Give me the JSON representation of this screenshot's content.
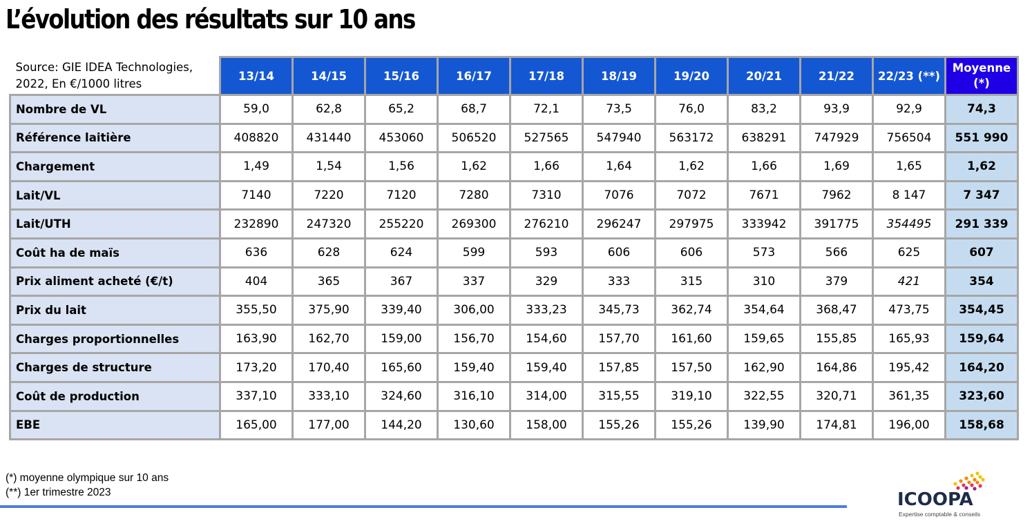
{
  "title": "L’évolution des résultats sur 10 ans",
  "source_line1": "Source: GIE IDEA Technologies,",
  "source_line2": "2022, En €/1000 litres",
  "years": [
    "13/14",
    "14/15",
    "15/16",
    "16/17",
    "17/18",
    "18/19",
    "19/20",
    "20/21",
    "21/22",
    "22/23 (**)"
  ],
  "avg_header_line1": "Moyenne",
  "avg_header_line2": "(*)",
  "rows": [
    {
      "label": "Nombre de VL",
      "values": [
        "59,0",
        "62,8",
        "65,2",
        "68,7",
        "72,1",
        "73,5",
        "76,0",
        "83,2",
        "93,9",
        "92,9"
      ],
      "avg": "74,3"
    },
    {
      "label": "Référence laitière",
      "values": [
        "408820",
        "431440",
        "453060",
        "506520",
        "527565",
        "547940",
        "563172",
        "638291",
        "747929",
        "756504"
      ],
      "avg": "551 990"
    },
    {
      "label": "Chargement",
      "values": [
        "1,49",
        "1,54",
        "1,56",
        "1,62",
        "1,66",
        "1,64",
        "1,62",
        "1,66",
        "1,69",
        "1,65"
      ],
      "avg": "1,62"
    },
    {
      "label": "Lait/VL",
      "values": [
        "7140",
        "7220",
        "7120",
        "7280",
        "7310",
        "7076",
        "7072",
        "7671",
        "7962",
        "8 147"
      ],
      "avg": "7 347"
    },
    {
      "label": "Lait/UTH",
      "values": [
        "232890",
        "247320",
        "255220",
        "269300",
        "276210",
        "296247",
        "297975",
        "333942",
        "391775",
        "354495"
      ],
      "avg": "291 339",
      "italic_last": true
    },
    {
      "label": "Coût ha de maïs",
      "values": [
        "636",
        "628",
        "624",
        "599",
        "593",
        "606",
        "606",
        "573",
        "566",
        "625"
      ],
      "avg": "607"
    },
    {
      "label": "Prix aliment acheté (€/t)",
      "values": [
        "404",
        "365",
        "367",
        "337",
        "329",
        "333",
        "315",
        "310",
        "379",
        "421"
      ],
      "avg": "354",
      "italic_last": true
    },
    {
      "label": "Prix du lait",
      "values": [
        "355,50",
        "375,90",
        "339,40",
        "306,00",
        "333,23",
        "345,73",
        "362,74",
        "354,64",
        "368,47",
        "473,75"
      ],
      "avg": "354,45"
    },
    {
      "label": "Charges proportionnelles",
      "values": [
        "163,90",
        "162,70",
        "159,00",
        "156,70",
        "154,60",
        "157,70",
        "161,60",
        "159,65",
        "155,85",
        "165,93"
      ],
      "avg": "159,64"
    },
    {
      "label": "Charges de structure",
      "values": [
        "173,20",
        "170,40",
        "165,60",
        "159,40",
        "159,40",
        "157,85",
        "157,50",
        "162,90",
        "164,86",
        "195,42"
      ],
      "avg": "164,20"
    },
    {
      "label": "Coût de production",
      "values": [
        "337,10",
        "333,10",
        "324,60",
        "316,10",
        "314,00",
        "315,55",
        "319,10",
        "322,55",
        "320,71",
        "361,35"
      ],
      "avg": "323,60"
    },
    {
      "label": "EBE",
      "values": [
        "165,00",
        "177,00",
        "144,20",
        "130,60",
        "158,00",
        "155,26",
        "155,26",
        "139,90",
        "174,81",
        "196,00"
      ],
      "avg": "158,68"
    }
  ],
  "note1": "(*) moyenne olympique sur 10 ans",
  "note2": "(**) 1er trimestre 2023",
  "logo": {
    "name": "ICOOPA",
    "tagline": "Expertise comptable & conseils",
    "dot_colors": [
      "#f2c200",
      "#f08a00",
      "#e6335a",
      "#8e2a8f"
    ]
  }
}
